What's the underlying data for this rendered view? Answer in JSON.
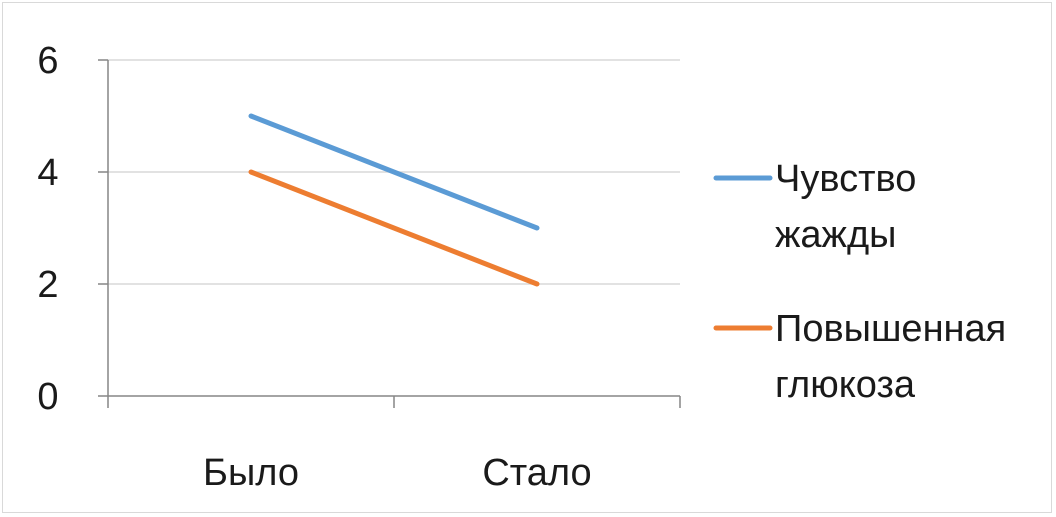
{
  "chart_data": {
    "type": "line",
    "categories": [
      "Было",
      "Стало"
    ],
    "series": [
      {
        "name": "Чувство жажды",
        "name_lines": [
          "Чувство",
          "жажды"
        ],
        "values": [
          5,
          3
        ],
        "color": "#5b9bd5"
      },
      {
        "name": "Повышенная глюкоза",
        "name_lines": [
          "Повышенная",
          "глюкоза"
        ],
        "values": [
          4,
          2
        ],
        "color": "#ed7d31"
      }
    ],
    "yticks": [
      0,
      2,
      4,
      6
    ],
    "ylim": [
      0,
      6
    ],
    "grid": true,
    "legend_position": "right",
    "gridline_color": "#d9d9d9",
    "axis_color": "#868686"
  }
}
